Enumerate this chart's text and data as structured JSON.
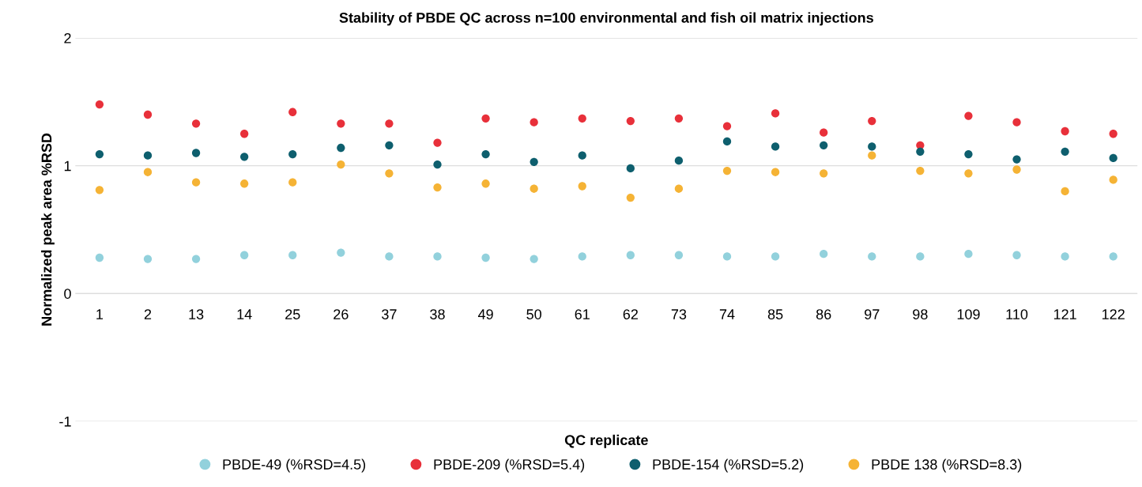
{
  "chart_data": {
    "type": "scatter",
    "title": "Stability of PBDE QC across n=100 environmental and fish oil matrix injections",
    "xlabel": "QC replicate",
    "ylabel": "Normalized peak area %RSD",
    "categories": [
      "1",
      "2",
      "13",
      "14",
      "25",
      "26",
      "37",
      "38",
      "49",
      "50",
      "61",
      "62",
      "73",
      "74",
      "85",
      "86",
      "97",
      "98",
      "109",
      "110",
      "121",
      "122"
    ],
    "series": [
      {
        "name": "PBDE-49 (%RSD=4.5)",
        "color": "#92d1dc",
        "values": [
          0.28,
          0.27,
          0.27,
          0.3,
          0.3,
          0.32,
          0.29,
          0.29,
          0.28,
          0.27,
          0.29,
          0.3,
          0.3,
          0.29,
          0.29,
          0.31,
          0.29,
          0.29,
          0.31,
          0.3,
          0.29,
          0.29
        ]
      },
      {
        "name": "PBDE-209 (%RSD=5.4)",
        "color": "#e8303a",
        "values": [
          1.48,
          1.4,
          1.33,
          1.25,
          1.42,
          1.33,
          1.33,
          1.18,
          1.37,
          1.34,
          1.37,
          1.35,
          1.37,
          1.31,
          1.41,
          1.26,
          1.35,
          1.16,
          1.39,
          1.34,
          1.27,
          1.25
        ]
      },
      {
        "name": "PBDE-154 (%RSD=5.2)",
        "color": "#0e5f6e",
        "values": [
          1.09,
          1.08,
          1.1,
          1.07,
          1.09,
          1.14,
          1.16,
          1.01,
          1.09,
          1.03,
          1.08,
          0.98,
          1.04,
          1.19,
          1.15,
          1.16,
          1.15,
          1.11,
          1.09,
          1.05,
          1.11,
          1.06
        ]
      },
      {
        "name": "PBDE 138 (%RSD=8.3)",
        "color": "#f5b335",
        "values": [
          0.81,
          0.95,
          0.87,
          0.86,
          0.87,
          1.01,
          0.94,
          0.83,
          0.86,
          0.82,
          0.84,
          0.75,
          0.82,
          0.96,
          0.95,
          0.94,
          1.08,
          0.96,
          0.94,
          0.97,
          0.8,
          0.89
        ]
      }
    ],
    "ylim": [
      -1,
      2
    ],
    "yticks": [
      {
        "value": -1,
        "label": "-1"
      },
      0,
      1,
      2
    ],
    "grid": "y",
    "legend": "bottom",
    "marker": "circle"
  }
}
